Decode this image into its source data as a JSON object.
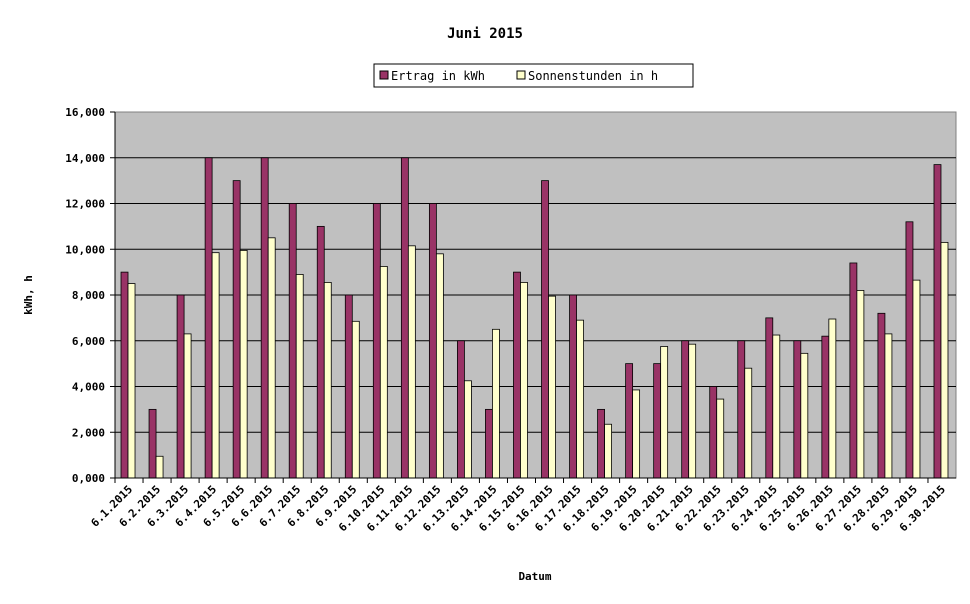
{
  "chart_data": {
    "type": "bar",
    "title": "Juni 2015",
    "xlabel": "Datum",
    "ylabel": "kWh, h",
    "ylim": [
      0,
      16
    ],
    "y_ticks": [
      "0,000",
      "2,000",
      "4,000",
      "6,000",
      "8,000",
      "10,000",
      "12,000",
      "14,000",
      "16,000"
    ],
    "y_tick_values": [
      0,
      2,
      4,
      6,
      8,
      10,
      12,
      14,
      16
    ],
    "grid": true,
    "legend_position": "top-center",
    "categories": [
      "6.1.2015",
      "6.2.2015",
      "6.3.2015",
      "6.4.2015",
      "6.5.2015",
      "6.6.2015",
      "6.7.2015",
      "6.8.2015",
      "6.9.2015",
      "6.10.2015",
      "6.11.2015",
      "6.12.2015",
      "6.13.2015",
      "6.14.2015",
      "6.15.2015",
      "6.16.2015",
      "6.17.2015",
      "6.18.2015",
      "6.19.2015",
      "6.20.2015",
      "6.21.2015",
      "6.22.2015",
      "6.23.2015",
      "6.24.2015",
      "6.25.2015",
      "6.26.2015",
      "6.27.2015",
      "6.28.2015",
      "6.29.2015",
      "6.30.2015"
    ],
    "series": [
      {
        "name": "Ertrag in kWh",
        "color": "#993366",
        "values": [
          9,
          3,
          8,
          14,
          13,
          14,
          12,
          11,
          8,
          12,
          14,
          12,
          6,
          3,
          9,
          13,
          8,
          3,
          5,
          5,
          6,
          4,
          6,
          7,
          6,
          6.2,
          9.4,
          7.2,
          11.2,
          13.7
        ]
      },
      {
        "name": "Sonnenstunden in h",
        "color": "#ffffcc",
        "values": [
          8.5,
          0.95,
          6.3,
          9.85,
          9.95,
          10.5,
          8.9,
          8.55,
          6.85,
          9.25,
          10.15,
          9.8,
          4.25,
          6.5,
          8.55,
          7.95,
          6.9,
          2.35,
          3.85,
          5.75,
          5.85,
          3.45,
          4.8,
          6.25,
          5.45,
          6.95,
          8.2,
          6.3,
          8.65,
          10.3
        ]
      }
    ]
  }
}
